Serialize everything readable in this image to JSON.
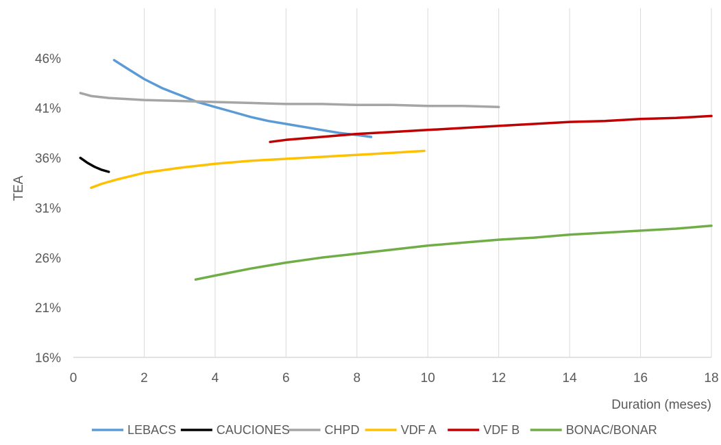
{
  "chart_data": {
    "type": "line",
    "xlabel": "Duration (meses)",
    "ylabel": "TEA",
    "xlim": [
      0,
      18
    ],
    "ylim": [
      0.16,
      0.51
    ],
    "x_ticks": [
      0,
      2,
      4,
      6,
      8,
      10,
      12,
      14,
      16,
      18
    ],
    "x_tick_labels": [
      "0",
      "2",
      "4",
      "6",
      "8",
      "10",
      "12",
      "14",
      "16",
      "18"
    ],
    "y_ticks": [
      0.16,
      0.21,
      0.26,
      0.31,
      0.36,
      0.41,
      0.46
    ],
    "y_tick_labels": [
      "16%",
      "21%",
      "26%",
      "31%",
      "36%",
      "41%",
      "46%"
    ],
    "grid": "vertical",
    "legend_position": "bottom",
    "series": [
      {
        "name": "LEBACS",
        "color": "#5b9bd5",
        "x": [
          1.15,
          1.5,
          2,
          2.5,
          3,
          3.5,
          4,
          4.5,
          5,
          5.5,
          6,
          6.5,
          7,
          7.5,
          8,
          8.4
        ],
        "y": [
          0.458,
          0.45,
          0.439,
          0.43,
          0.423,
          0.416,
          0.411,
          0.406,
          0.401,
          0.397,
          0.394,
          0.391,
          0.388,
          0.385,
          0.383,
          0.381
        ]
      },
      {
        "name": "CAUCIONES",
        "color": "#000000",
        "x": [
          0.2,
          0.4,
          0.6,
          0.8,
          1.0
        ],
        "y": [
          0.36,
          0.355,
          0.351,
          0.348,
          0.346
        ]
      },
      {
        "name": "CHPD",
        "color": "#a5a5a5",
        "x": [
          0.2,
          0.5,
          1,
          2,
          3,
          4,
          5,
          6,
          7,
          8,
          9,
          10,
          11,
          12
        ],
        "y": [
          0.425,
          0.422,
          0.42,
          0.418,
          0.417,
          0.416,
          0.415,
          0.414,
          0.414,
          0.413,
          0.413,
          0.412,
          0.412,
          0.411
        ]
      },
      {
        "name": "VDF A",
        "color": "#ffc000",
        "x": [
          0.5,
          0.8,
          1.2,
          2,
          3,
          4,
          5,
          6,
          7,
          8,
          9,
          9.9
        ],
        "y": [
          0.33,
          0.334,
          0.338,
          0.345,
          0.35,
          0.354,
          0.357,
          0.359,
          0.361,
          0.363,
          0.365,
          0.367
        ]
      },
      {
        "name": "VDF B",
        "color": "#c00000",
        "x": [
          5.55,
          6,
          7,
          8,
          9,
          10,
          11,
          12,
          13,
          14,
          15,
          16,
          17,
          18
        ],
        "y": [
          0.376,
          0.378,
          0.381,
          0.384,
          0.386,
          0.388,
          0.39,
          0.392,
          0.394,
          0.396,
          0.397,
          0.399,
          0.4,
          0.402
        ]
      },
      {
        "name": "BONAC/BONAR",
        "color": "#70ad47",
        "x": [
          3.45,
          4,
          5,
          6,
          7,
          8,
          9,
          10,
          11,
          12,
          13,
          14,
          15,
          16,
          17,
          18
        ],
        "y": [
          0.238,
          0.242,
          0.249,
          0.255,
          0.26,
          0.264,
          0.268,
          0.272,
          0.275,
          0.278,
          0.28,
          0.283,
          0.285,
          0.287,
          0.289,
          0.292
        ]
      }
    ]
  }
}
